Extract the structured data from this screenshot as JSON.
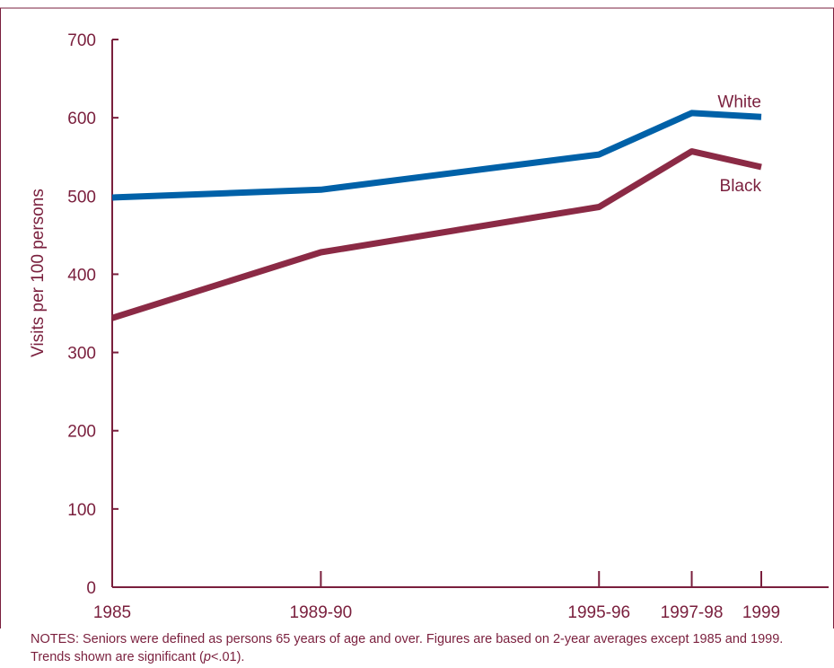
{
  "chart_data": {
    "type": "line",
    "title": "",
    "xlabel": "",
    "ylabel": "Visits per 100 persons",
    "ylim": [
      0,
      700
    ],
    "yticks": [
      "0",
      "100",
      "200",
      "300",
      "400",
      "500",
      "600",
      "700"
    ],
    "categories": [
      "1985",
      "1989-90",
      "1995-96",
      "1997-98",
      "1999"
    ],
    "x_positions": [
      1985,
      1989.5,
      1995.5,
      1997.5,
      1999
    ],
    "series": [
      {
        "name": "White",
        "values": [
          498,
          508,
          553,
          606,
          601
        ]
      },
      {
        "name": "Black",
        "values": [
          344,
          428,
          486,
          557,
          537
        ]
      }
    ],
    "grid": false,
    "legend": "direct labels at right end of lines"
  },
  "colors": {
    "white_series": "#0061a8",
    "black_series": "#8b2a45",
    "axis": "#7a1f3d",
    "text": "#7a1f3d"
  },
  "notes": {
    "prefix": "NOTES: Seniors were defined as persons 65 years of age and over. Figures are based on 2-year averages except 1985 and 1999. Trends shown are significant (",
    "p": "p",
    "suffix": "<.01)."
  }
}
